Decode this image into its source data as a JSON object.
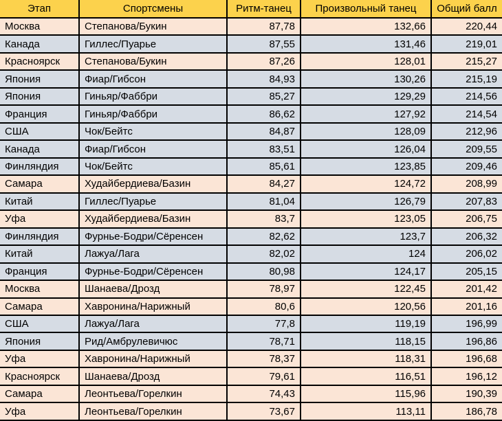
{
  "colors": {
    "header_bg": "#FCD24C",
    "home_row_bg": "#FBE5D6",
    "away_row_bg": "#D6DCE4",
    "grid_border": "#000000",
    "text_color": "#000000"
  },
  "chart_data": {
    "type": "table",
    "columns": [
      "Этап",
      "Спортсмены",
      "Ритм-танец",
      "Произвольный танец",
      "Общий балл"
    ],
    "rows": [
      {
        "stage": "Москва",
        "athletes": "Степанова/Букин",
        "rhythm_dance": "87,78",
        "free_dance": "132,66",
        "total": "220,44",
        "row_style": "home"
      },
      {
        "stage": "Канада",
        "athletes": "Гиллес/Пуарье",
        "rhythm_dance": "87,55",
        "free_dance": "131,46",
        "total": "219,01",
        "row_style": "away"
      },
      {
        "stage": "Красноярск",
        "athletes": "Степанова/Букин",
        "rhythm_dance": "87,26",
        "free_dance": "128,01",
        "total": "215,27",
        "row_style": "home"
      },
      {
        "stage": "Япония",
        "athletes": "Фиар/Гибсон",
        "rhythm_dance": "84,93",
        "free_dance": "130,26",
        "total": "215,19",
        "row_style": "away"
      },
      {
        "stage": "Япония",
        "athletes": "Гиньяр/Фаббри",
        "rhythm_dance": "85,27",
        "free_dance": "129,29",
        "total": "214,56",
        "row_style": "away"
      },
      {
        "stage": "Франция",
        "athletes": "Гиньяр/Фаббри",
        "rhythm_dance": "86,62",
        "free_dance": "127,92",
        "total": "214,54",
        "row_style": "away"
      },
      {
        "stage": "США",
        "athletes": "Чок/Бейтс",
        "rhythm_dance": "84,87",
        "free_dance": "128,09",
        "total": "212,96",
        "row_style": "away"
      },
      {
        "stage": "Канада",
        "athletes": "Фиар/Гибсон",
        "rhythm_dance": "83,51",
        "free_dance": "126,04",
        "total": "209,55",
        "row_style": "away"
      },
      {
        "stage": "Финляндия",
        "athletes": "Чок/Бейтс",
        "rhythm_dance": "85,61",
        "free_dance": "123,85",
        "total": "209,46",
        "row_style": "away"
      },
      {
        "stage": "Самара",
        "athletes": "Худайбердиева/Базин",
        "rhythm_dance": "84,27",
        "free_dance": "124,72",
        "total": "208,99",
        "row_style": "home"
      },
      {
        "stage": "Китай",
        "athletes": "Гиллес/Пуарье",
        "rhythm_dance": "81,04",
        "free_dance": "126,79",
        "total": "207,83",
        "row_style": "away"
      },
      {
        "stage": "Уфа",
        "athletes": "Худайбердиева/Базин",
        "rhythm_dance": "83,7",
        "free_dance": "123,05",
        "total": "206,75",
        "row_style": "home"
      },
      {
        "stage": "Финляндия",
        "athletes": "Фурнье-Бодри/Сёренсен",
        "rhythm_dance": "82,62",
        "free_dance": "123,7",
        "total": "206,32",
        "row_style": "away"
      },
      {
        "stage": "Китай",
        "athletes": "Лажуа/Лага",
        "rhythm_dance": "82,02",
        "free_dance": "124",
        "total": "206,02",
        "row_style": "away"
      },
      {
        "stage": "Франция",
        "athletes": "Фурнье-Бодри/Сёренсен",
        "rhythm_dance": "80,98",
        "free_dance": "124,17",
        "total": "205,15",
        "row_style": "away"
      },
      {
        "stage": "Москва",
        "athletes": "Шанаева/Дрозд",
        "rhythm_dance": "78,97",
        "free_dance": "122,45",
        "total": "201,42",
        "row_style": "home"
      },
      {
        "stage": "Самара",
        "athletes": "Хавронина/Нарижный",
        "rhythm_dance": "80,6",
        "free_dance": "120,56",
        "total": "201,16",
        "row_style": "home"
      },
      {
        "stage": "США",
        "athletes": "Лажуа/Лага",
        "rhythm_dance": "77,8",
        "free_dance": "119,19",
        "total": "196,99",
        "row_style": "away"
      },
      {
        "stage": "Япония",
        "athletes": "Рид/Амбрулевичюс",
        "rhythm_dance": "78,71",
        "free_dance": "118,15",
        "total": "196,86",
        "row_style": "away"
      },
      {
        "stage": "Уфа",
        "athletes": "Хавронина/Нарижный",
        "rhythm_dance": "78,37",
        "free_dance": "118,31",
        "total": "196,68",
        "row_style": "home"
      },
      {
        "stage": "Красноярск",
        "athletes": "Шанаева/Дрозд",
        "rhythm_dance": "79,61",
        "free_dance": "116,51",
        "total": "196,12",
        "row_style": "home"
      },
      {
        "stage": "Самара",
        "athletes": "Леонтьева/Горелкин",
        "rhythm_dance": "74,43",
        "free_dance": "115,96",
        "total": "190,39",
        "row_style": "home"
      },
      {
        "stage": "Уфа",
        "athletes": "Леонтьева/Горелкин",
        "rhythm_dance": "73,67",
        "free_dance": "113,11",
        "total": "186,78",
        "row_style": "home"
      }
    ]
  }
}
